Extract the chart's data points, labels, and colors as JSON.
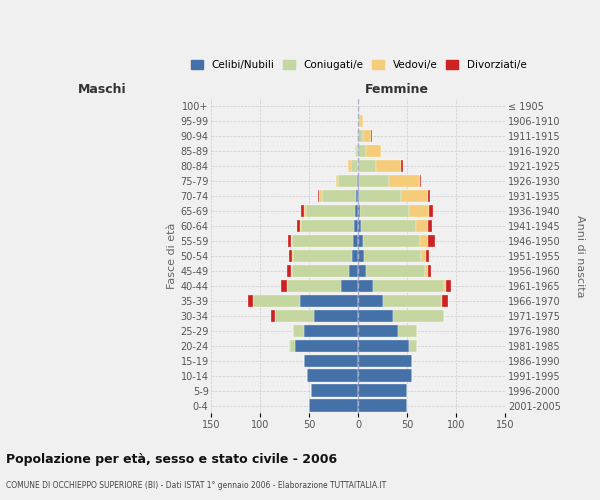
{
  "age_groups": [
    "0-4",
    "5-9",
    "10-14",
    "15-19",
    "20-24",
    "25-29",
    "30-34",
    "35-39",
    "40-44",
    "45-49",
    "50-54",
    "55-59",
    "60-64",
    "65-69",
    "70-74",
    "75-79",
    "80-84",
    "85-89",
    "90-94",
    "95-99",
    "100+"
  ],
  "birth_years": [
    "2001-2005",
    "1996-2000",
    "1991-1995",
    "1986-1990",
    "1981-1985",
    "1976-1980",
    "1971-1975",
    "1966-1970",
    "1961-1965",
    "1956-1960",
    "1951-1955",
    "1946-1950",
    "1941-1945",
    "1936-1940",
    "1931-1935",
    "1926-1930",
    "1921-1925",
    "1916-1920",
    "1911-1915",
    "1906-1910",
    "≤ 1905"
  ],
  "males": {
    "celibi": [
      50,
      48,
      52,
      55,
      65,
      55,
      45,
      60,
      18,
      10,
      7,
      6,
      4,
      3,
      2,
      1,
      0,
      0,
      0,
      0,
      0
    ],
    "coniugati": [
      0,
      0,
      0,
      0,
      5,
      12,
      40,
      48,
      55,
      58,
      60,
      62,
      55,
      50,
      35,
      20,
      8,
      2,
      1,
      0,
      0
    ],
    "vedovi": [
      0,
      0,
      0,
      0,
      1,
      0,
      0,
      0,
      0,
      1,
      1,
      1,
      1,
      2,
      3,
      2,
      3,
      1,
      0,
      0,
      0
    ],
    "divorziati": [
      0,
      0,
      0,
      0,
      0,
      0,
      4,
      5,
      6,
      4,
      3,
      3,
      3,
      4,
      1,
      0,
      0,
      0,
      0,
      0,
      0
    ]
  },
  "females": {
    "nubili": [
      50,
      50,
      55,
      55,
      52,
      40,
      35,
      25,
      15,
      8,
      6,
      5,
      3,
      2,
      1,
      1,
      0,
      0,
      0,
      0,
      0
    ],
    "coniugate": [
      0,
      0,
      0,
      0,
      8,
      20,
      52,
      60,
      72,
      60,
      58,
      58,
      56,
      50,
      42,
      30,
      18,
      8,
      5,
      2,
      0
    ],
    "vedove": [
      0,
      0,
      0,
      0,
      0,
      0,
      0,
      0,
      2,
      3,
      5,
      8,
      12,
      20,
      28,
      32,
      25,
      15,
      8,
      3,
      1
    ],
    "divorziate": [
      0,
      0,
      0,
      0,
      0,
      0,
      0,
      6,
      5,
      3,
      3,
      7,
      4,
      4,
      2,
      1,
      2,
      0,
      1,
      0,
      0
    ]
  },
  "colors": {
    "celibi": "#4472A8",
    "coniugati": "#C5D6A0",
    "vedovi": "#F5CC7A",
    "divorziati": "#CC2222"
  },
  "xlim": 150,
  "title": "Popolazione per età, sesso e stato civile - 2006",
  "subtitle": "COMUNE DI OCCHIEPPO SUPERIORE (BI) - Dati ISTAT 1° gennaio 2006 - Elaborazione TUTTAITALIA.IT",
  "ylabel_left": "Fasce di età",
  "ylabel_right": "Anni di nascita",
  "header_left": "Maschi",
  "header_right": "Femmine",
  "bg_color": "#f0f0f0",
  "grid_color": "#cccccc",
  "legend_labels": [
    "Celibi/Nubili",
    "Coniugati/e",
    "Vedovi/e",
    "Divorziati/e"
  ]
}
